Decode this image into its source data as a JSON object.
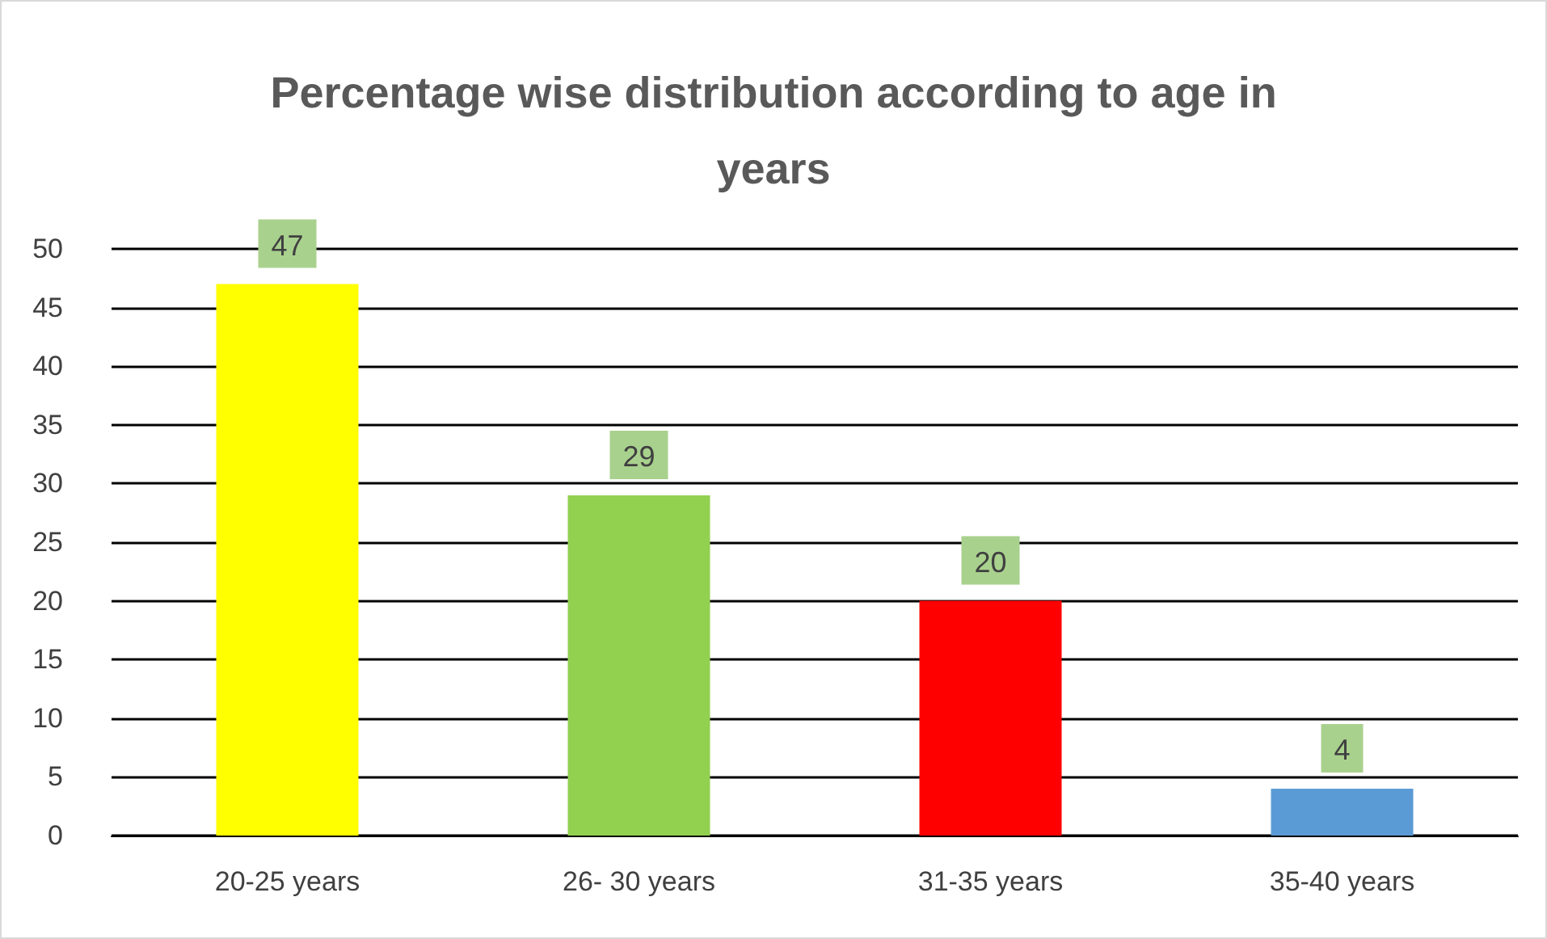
{
  "chart_data": {
    "type": "bar",
    "title": "Percentage wise distribution according to age in\nyears",
    "categories": [
      "20-25 years",
      "26- 30 years",
      "31-35 years",
      "35-40 years"
    ],
    "values": [
      47,
      29,
      20,
      4
    ],
    "colors": [
      "#ffff00",
      "#92d050",
      "#ff0000",
      "#5b9bd5"
    ],
    "ylim": [
      0,
      50
    ],
    "yticks": [
      0,
      5,
      10,
      15,
      20,
      25,
      30,
      35,
      40,
      45,
      50
    ],
    "grid": "y",
    "data_labels": true
  }
}
